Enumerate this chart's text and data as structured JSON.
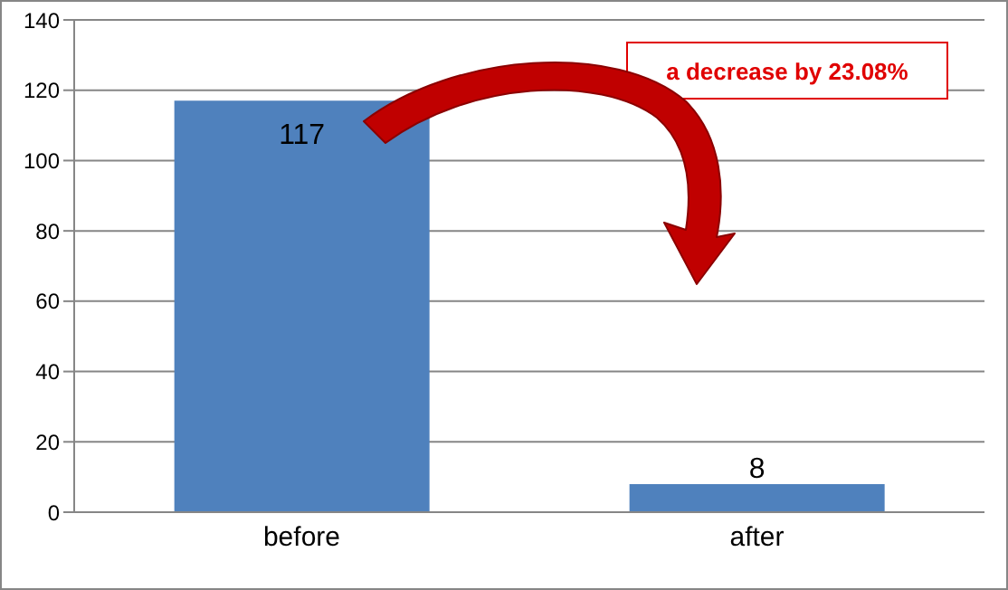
{
  "chart_data": {
    "type": "bar",
    "categories": [
      "before",
      "after"
    ],
    "values": [
      117,
      8
    ],
    "color": "#4f81bd",
    "ylim": [
      0,
      140
    ],
    "yticks": [
      0,
      20,
      40,
      60,
      80,
      100,
      120,
      140
    ],
    "grid": "y",
    "data_labels": true,
    "annotations": [
      "a decrease by 23.08%"
    ]
  }
}
